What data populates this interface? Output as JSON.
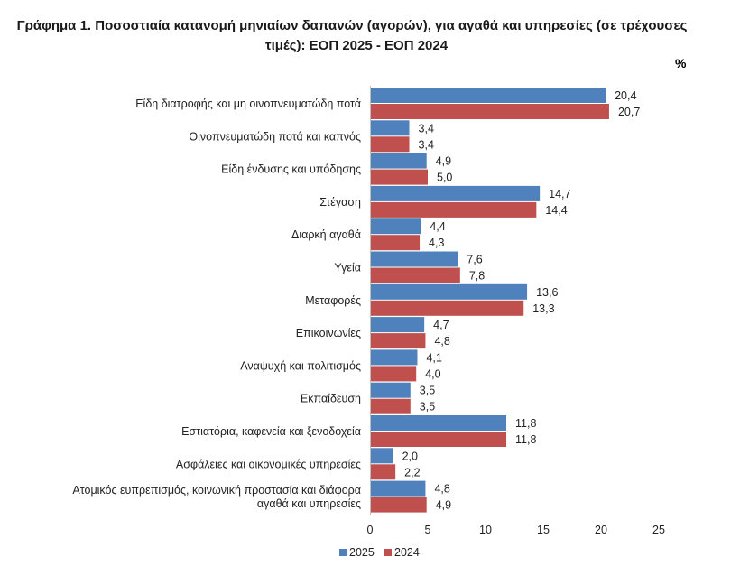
{
  "chart_data": {
    "type": "bar",
    "orientation": "horizontal",
    "title": "Γράφημα 1. Ποσοστιαία κατανομή μηνιαίων δαπανών (αγορών), για αγαθά και υπηρεσίες (σε τρέχουσες τιμές): ΕΟΠ 2025 - ΕΟΠ 2024",
    "title_lines": [
      "Γράφημα 1. Ποσοστιαία κατανομή μηνιαίων δαπανών (αγορών), για αγαθά και υπηρεσίες (σε τρέχουσες",
      "τιμές): ΕΟΠ 2025 - ΕΟΠ 2024"
    ],
    "unit": "%",
    "categories": [
      [
        "Είδη διατροφής και μη οινοπνευματώδη ποτά"
      ],
      [
        "Οινοπνευματώδη ποτά και καπνός"
      ],
      [
        "Είδη ένδυσης και υπόδησης"
      ],
      [
        "Στέγαση"
      ],
      [
        "Διαρκή αγαθά"
      ],
      [
        "Υγεία"
      ],
      [
        "Μεταφορές"
      ],
      [
        "Επικοινωνίες"
      ],
      [
        "Αναψυχή και πολιτισμός"
      ],
      [
        "Εκπαίδευση"
      ],
      [
        "Εστιατόρια, καφενεία και ξενοδοχεία"
      ],
      [
        "Ασφάλειες και  οικονομικές υπηρεσίες"
      ],
      [
        "Ατομικός ευπρεπισμός, κοινωνική προστασία και διάφορα",
        "αγαθά και υπηρεσίες"
      ]
    ],
    "series": [
      {
        "name": "2025",
        "color": "#4f81bd",
        "values": [
          20.4,
          3.4,
          4.9,
          14.7,
          4.4,
          7.6,
          13.6,
          4.7,
          4.1,
          3.5,
          11.8,
          2.0,
          4.8
        ],
        "labels": [
          "20,4",
          "3,4",
          "4,9",
          "14,7",
          "4,4",
          "7,6",
          "13,6",
          "4,7",
          "4,1",
          "3,5",
          "11,8",
          "2,0",
          "4,8"
        ]
      },
      {
        "name": "2024",
        "color": "#c0504d",
        "values": [
          20.7,
          3.4,
          5.0,
          14.4,
          4.3,
          7.8,
          13.3,
          4.8,
          4.0,
          3.5,
          11.8,
          2.2,
          4.9
        ],
        "labels": [
          "20,7",
          "3,4",
          "5,0",
          "14,4",
          "4,3",
          "7,8",
          "13,3",
          "4,8",
          "4,0",
          "3,5",
          "11,8",
          "2,2",
          "4,9"
        ]
      }
    ],
    "xlim": [
      0,
      25
    ],
    "xticks": [
      "0",
      "5",
      "10",
      "15",
      "20",
      "25"
    ],
    "grid": false,
    "legend_position": "bottom-left"
  }
}
